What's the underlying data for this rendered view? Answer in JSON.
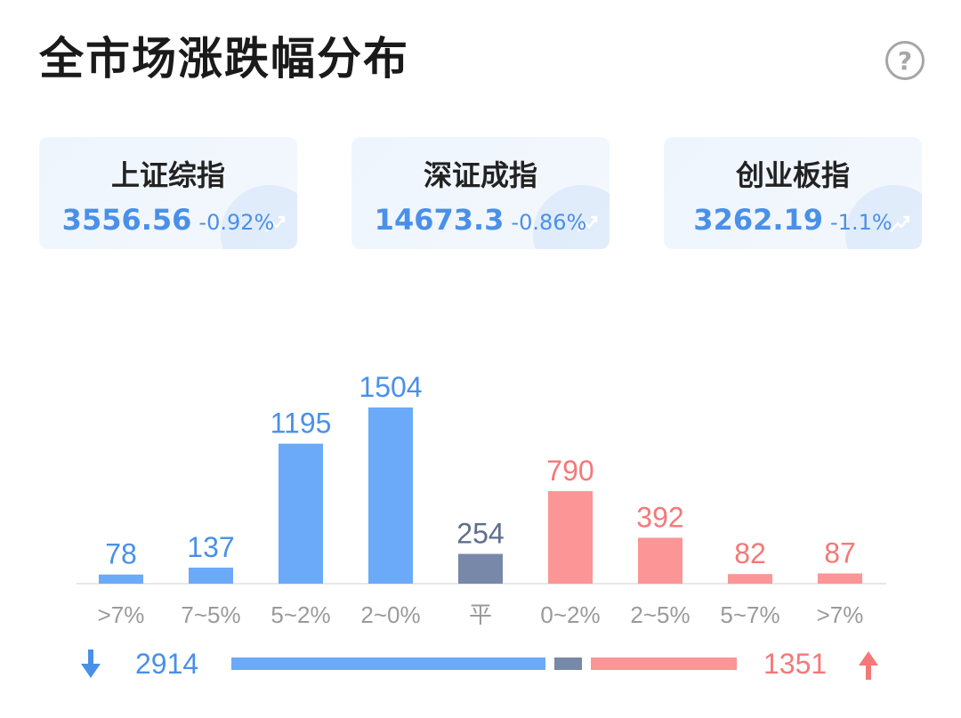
{
  "title": "全市场涨跌幅分布",
  "help_icon": "?",
  "indices": [
    {
      "name": "上证综指",
      "value": "3556.56",
      "change": "-0.92%"
    },
    {
      "name": "深证成指",
      "value": "14673.3",
      "change": "-0.86%"
    },
    {
      "name": "创业板指",
      "value": "3262.19",
      "change": "-1.1%"
    }
  ],
  "colors": {
    "down": "#6aaaf8",
    "flat": "#7888a8",
    "up": "#fc9595",
    "down_text": "#4a90e8",
    "up_text": "#f57878",
    "flat_text": "#5f6e8e",
    "label_text": "#9a9a9a"
  },
  "chart_data": {
    "type": "bar",
    "categories": [
      ">7%",
      "7~5%",
      "5~2%",
      "2~0%",
      "平",
      "0~2%",
      "2~5%",
      "5~7%",
      ">7%"
    ],
    "values": [
      78,
      137,
      1195,
      1504,
      254,
      790,
      392,
      82,
      87
    ],
    "direction": [
      "down",
      "down",
      "down",
      "down",
      "flat",
      "up",
      "up",
      "up",
      "up"
    ],
    "ylim": [
      0,
      1504
    ]
  },
  "summary": {
    "down_total": "2914",
    "up_total": "1351",
    "down_icon": "arrow-down-icon",
    "up_icon": "arrow-up-icon"
  }
}
